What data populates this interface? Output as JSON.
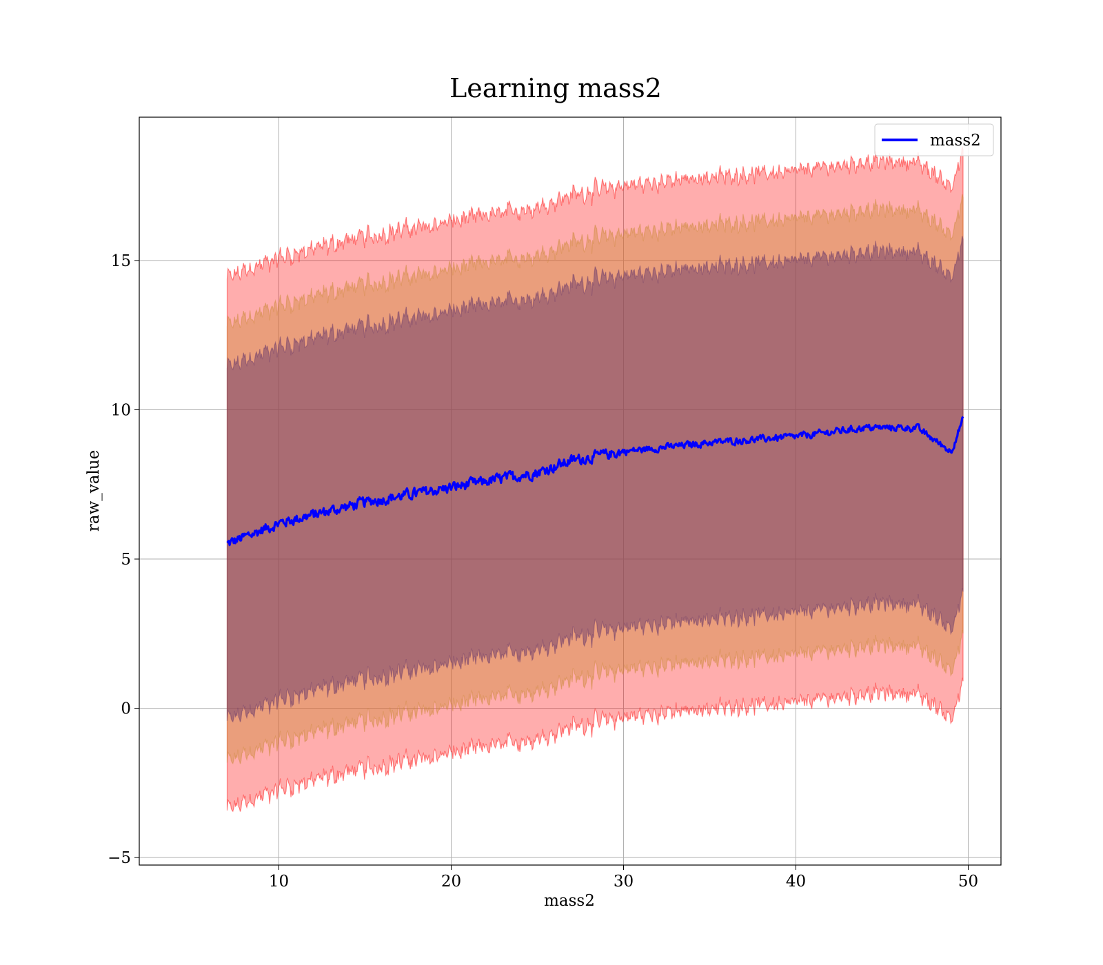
{
  "chart_data": {
    "type": "area",
    "title": "Learning mass2",
    "xlabel": "mass2",
    "ylabel": "raw_value",
    "xlim": [
      1.9,
      51.9
    ],
    "ylim": [
      -5.25,
      19.8
    ],
    "xticks": [
      10,
      20,
      30,
      40,
      50
    ],
    "yticks": [
      -5,
      0,
      5,
      10,
      15
    ],
    "xtick_labels": [
      "10",
      "20",
      "30",
      "40",
      "50"
    ],
    "ytick_labels": [
      "−5",
      "0",
      "5",
      "10",
      "15"
    ],
    "grid": true,
    "legend": {
      "placement": "upper-right",
      "entries": [
        "mass2"
      ]
    },
    "colors": {
      "line": "#0000ff",
      "band_outer": "#ff0000",
      "band_middle": "#cc8a3a",
      "band_inner": "#6a3a6a"
    },
    "mean_anchors": {
      "x": [
        7.0,
        10,
        15,
        20,
        25,
        27,
        30,
        35,
        40,
        44,
        47,
        49,
        49.7
      ],
      "y": [
        5.5,
        6.2,
        6.9,
        7.4,
        7.9,
        8.3,
        8.6,
        8.9,
        9.1,
        9.4,
        9.4,
        8.6,
        9.7
      ]
    },
    "series": [
      {
        "name": "mass2",
        "role": "mean",
        "x_range": [
          7.0,
          49.7
        ]
      },
      {
        "role": "band",
        "level": "outer",
        "half_width": 8.9
      },
      {
        "role": "band",
        "level": "middle",
        "half_width": 7.3
      },
      {
        "role": "band",
        "level": "inner",
        "half_width": 5.9
      }
    ]
  }
}
